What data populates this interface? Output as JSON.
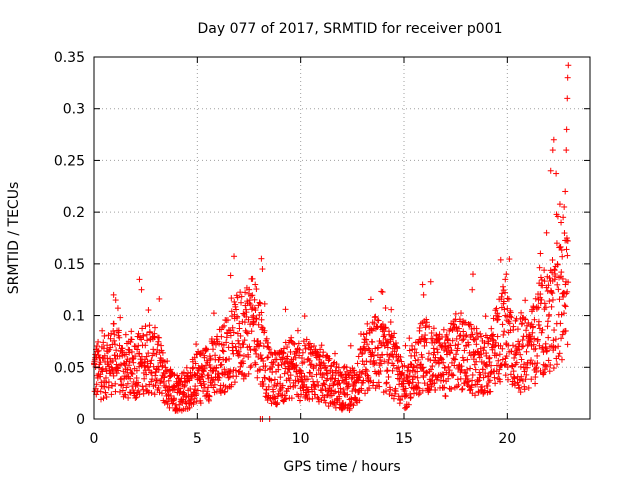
{
  "chart_data": {
    "type": "scatter",
    "title": "Day 077 of 2017, SRMTID for receiver p001",
    "xlabel": "GPS time / hours",
    "ylabel": "SRMTID / TECUs",
    "xlim": [
      0,
      24
    ],
    "ylim": [
      0,
      0.35
    ],
    "grid": true,
    "marker": "+",
    "color": "#ff0000",
    "x_ticks": [
      {
        "value": 0,
        "label": "0"
      },
      {
        "value": 5,
        "label": "5"
      },
      {
        "value": 10,
        "label": "10"
      },
      {
        "value": 15,
        "label": "15"
      },
      {
        "value": 20,
        "label": "20"
      }
    ],
    "y_ticks": [
      {
        "value": 0,
        "label": "0"
      },
      {
        "value": 0.05,
        "label": "0.05"
      },
      {
        "value": 0.1,
        "label": "0.1"
      },
      {
        "value": 0.15,
        "label": "0.15"
      },
      {
        "value": 0.2,
        "label": "0.2"
      },
      {
        "value": 0.25,
        "label": "0.25"
      },
      {
        "value": 0.3,
        "label": "0.3"
      },
      {
        "value": 0.35,
        "label": "0.35"
      }
    ],
    "trend": [
      [
        0.0,
        0.045
      ],
      [
        0.5,
        0.05
      ],
      [
        1.0,
        0.06
      ],
      [
        1.5,
        0.045
      ],
      [
        2.0,
        0.05
      ],
      [
        2.5,
        0.06
      ],
      [
        3.0,
        0.055
      ],
      [
        3.5,
        0.035
      ],
      [
        4.0,
        0.025
      ],
      [
        4.5,
        0.03
      ],
      [
        5.0,
        0.04
      ],
      [
        5.5,
        0.045
      ],
      [
        6.0,
        0.055
      ],
      [
        6.5,
        0.065
      ],
      [
        7.0,
        0.08
      ],
      [
        7.5,
        0.09
      ],
      [
        8.0,
        0.085
      ],
      [
        8.2,
        0.06
      ],
      [
        8.5,
        0.04
      ],
      [
        9.0,
        0.04
      ],
      [
        9.5,
        0.05
      ],
      [
        10.0,
        0.045
      ],
      [
        10.5,
        0.05
      ],
      [
        11.0,
        0.04
      ],
      [
        11.5,
        0.035
      ],
      [
        12.0,
        0.03
      ],
      [
        12.5,
        0.03
      ],
      [
        13.0,
        0.045
      ],
      [
        13.5,
        0.065
      ],
      [
        14.0,
        0.06
      ],
      [
        14.5,
        0.05
      ],
      [
        15.0,
        0.03
      ],
      [
        15.5,
        0.05
      ],
      [
        16.0,
        0.065
      ],
      [
        16.5,
        0.055
      ],
      [
        17.0,
        0.05
      ],
      [
        17.5,
        0.065
      ],
      [
        18.0,
        0.06
      ],
      [
        18.5,
        0.055
      ],
      [
        19.0,
        0.05
      ],
      [
        19.5,
        0.075
      ],
      [
        20.0,
        0.085
      ],
      [
        20.5,
        0.06
      ],
      [
        21.0,
        0.065
      ],
      [
        21.5,
        0.08
      ],
      [
        22.0,
        0.095
      ],
      [
        22.5,
        0.11
      ],
      [
        22.9,
        0.13
      ]
    ],
    "outliers": [
      [
        0.95,
        0.12
      ],
      [
        1.05,
        0.115
      ],
      [
        2.2,
        0.135
      ],
      [
        2.3,
        0.125
      ],
      [
        7.8,
        0.13
      ],
      [
        8.1,
        0.155
      ],
      [
        8.15,
        0.145
      ],
      [
        15.9,
        0.13
      ],
      [
        15.95,
        0.12
      ],
      [
        18.3,
        0.125
      ],
      [
        19.9,
        0.135
      ],
      [
        19.95,
        0.14
      ],
      [
        21.6,
        0.16
      ],
      [
        21.9,
        0.18
      ],
      [
        22.1,
        0.24
      ],
      [
        22.2,
        0.26
      ],
      [
        22.25,
        0.27
      ],
      [
        22.4,
        0.17
      ],
      [
        22.6,
        0.19
      ],
      [
        22.7,
        0.195
      ],
      [
        22.75,
        0.205
      ],
      [
        22.8,
        0.22
      ],
      [
        22.85,
        0.26
      ],
      [
        22.87,
        0.28
      ],
      [
        22.9,
        0.31
      ],
      [
        22.92,
        0.33
      ],
      [
        22.95,
        0.342
      ]
    ],
    "zero_points": [
      [
        8.05,
        0.0
      ],
      [
        8.15,
        0.0
      ],
      [
        8.5,
        0.0
      ]
    ]
  }
}
